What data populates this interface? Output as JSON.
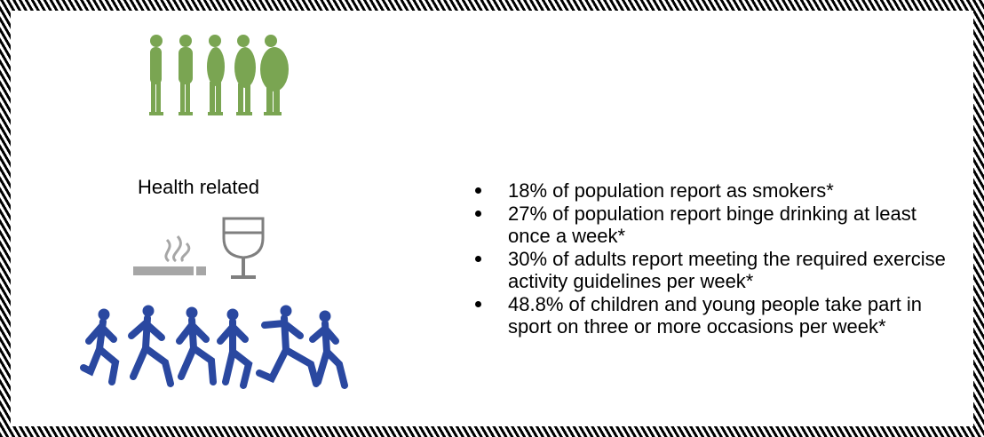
{
  "heading": "Health related",
  "bullets": [
    "18% of population report as smokers*",
    "27% of population report binge drinking at least once a week*",
    "30% of adults report meeting the required exercise activity guidelines per week*",
    "48.8% of children and young people take part in sport on three or more occasions per week*"
  ]
}
